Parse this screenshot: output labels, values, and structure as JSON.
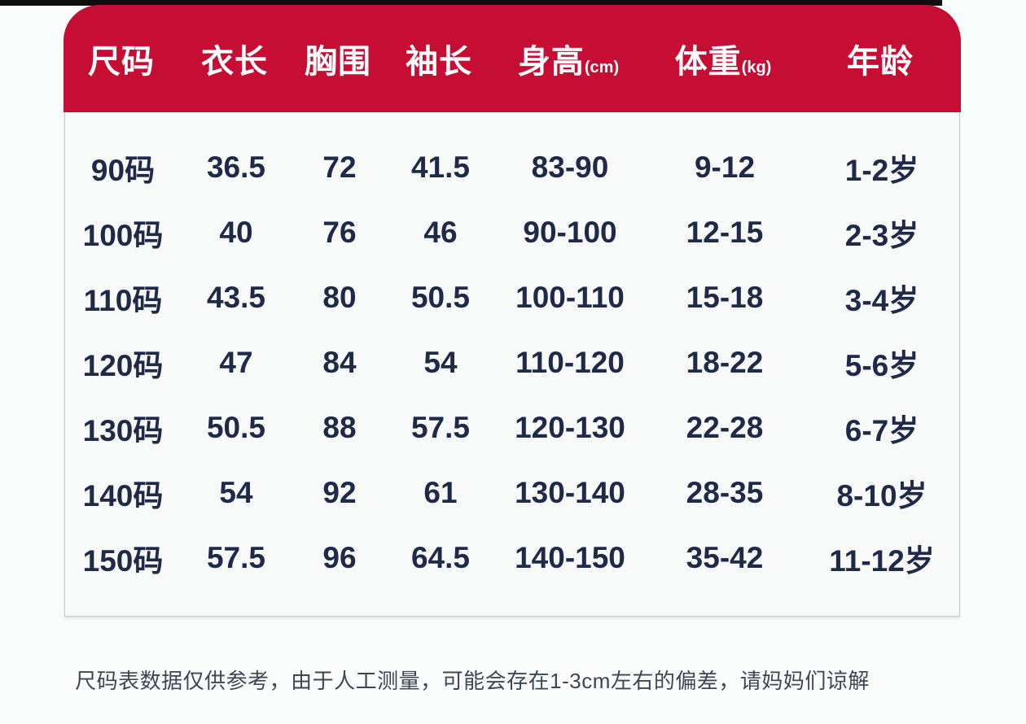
{
  "chart_data": {
    "type": "table",
    "columns": [
      {
        "label": "尺码",
        "unit": ""
      },
      {
        "label": "衣长",
        "unit": ""
      },
      {
        "label": "胸围",
        "unit": ""
      },
      {
        "label": "袖长",
        "unit": ""
      },
      {
        "label": "身高",
        "unit": "(cm)"
      },
      {
        "label": "体重",
        "unit": "(kg)"
      },
      {
        "label": "年龄",
        "unit": ""
      }
    ],
    "rows": [
      [
        "90码",
        "36.5",
        "72",
        "41.5",
        "83-90",
        "9-12",
        "1-2岁"
      ],
      [
        "100码",
        "40",
        "76",
        "46",
        "90-100",
        "12-15",
        "2-3岁"
      ],
      [
        "110码",
        "43.5",
        "80",
        "50.5",
        "100-110",
        "15-18",
        "3-4岁"
      ],
      [
        "120码",
        "47",
        "84",
        "54",
        "110-120",
        "18-22",
        "5-6岁"
      ],
      [
        "130码",
        "50.5",
        "88",
        "57.5",
        "120-130",
        "22-28",
        "6-7岁"
      ],
      [
        "140码",
        "54",
        "92",
        "61",
        "130-140",
        "28-35",
        "8-10岁"
      ],
      [
        "150码",
        "57.5",
        "96",
        "64.5",
        "140-150",
        "35-42",
        "11-12岁"
      ]
    ]
  },
  "footer": {
    "note": "尺码表数据仅供参考，由于人工测量，可能会存在1-3cm左右的偏差，请妈妈们谅解"
  },
  "colors": {
    "header_bg": "#c60d34",
    "header_text": "#ffffff",
    "body_text": "#1e2a48",
    "card_bg": "#f8f9f9",
    "page_bg": "#fbfcfc",
    "top_strip": "#0e0e10",
    "note_text": "#3d4754"
  }
}
